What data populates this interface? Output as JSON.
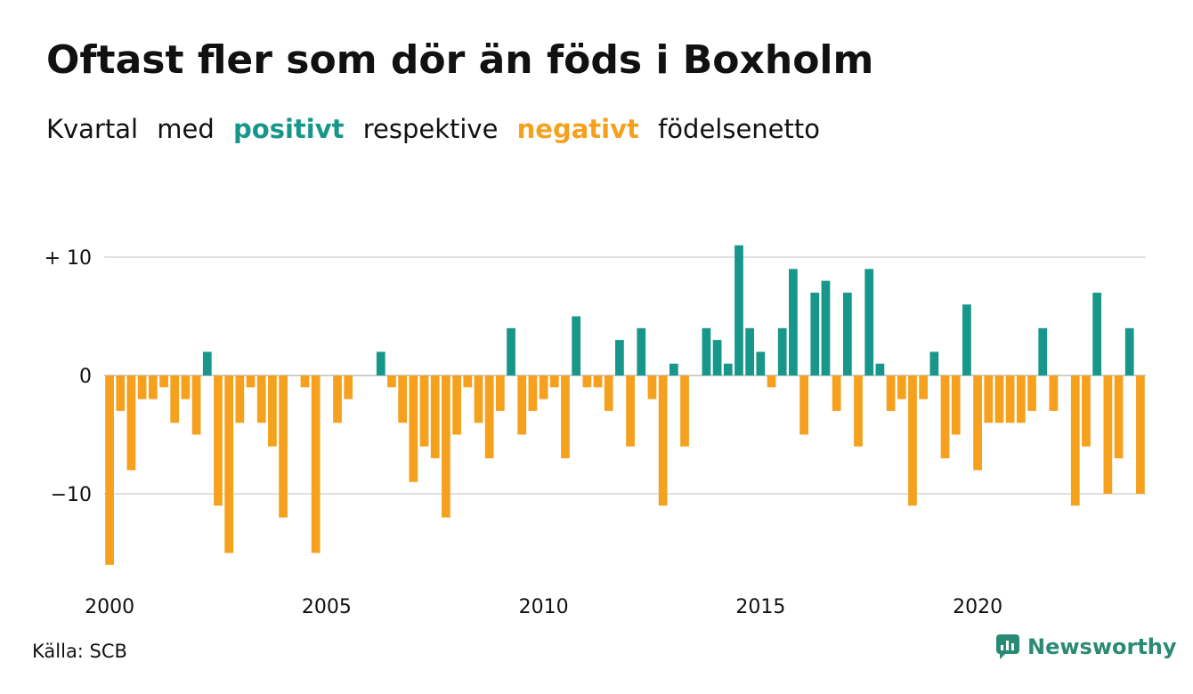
{
  "title": "Oftast fler som dör än föds i Boxholm",
  "subtitle": {
    "part1": "Kvartal",
    "part2": "med",
    "positive_word": "positivt",
    "part3": "respektive",
    "negative_word": "negativt",
    "part4": "födelsenetto"
  },
  "source": "Källa: SCB",
  "brand": "Newsworthy",
  "colors": {
    "positive": "#17978a",
    "negative": "#f5a11e",
    "grid": "#e0e0e0",
    "brand": "#2b8a74"
  },
  "chart_data": {
    "type": "bar",
    "start_year": 2000,
    "quarters_per_year": 4,
    "ylim": [
      -17,
      11
    ],
    "y_ticks": [
      {
        "value": 10,
        "label": "+ 10"
      },
      {
        "value": 0,
        "label": "0"
      },
      {
        "value": -10,
        "label": "−10"
      }
    ],
    "x_ticks": [
      "2000",
      "2005",
      "2010",
      "2015",
      "2020"
    ],
    "values": [
      -16,
      -3,
      -8,
      -2,
      -2,
      -1,
      -4,
      -2,
      -5,
      2,
      -11,
      -15,
      -4,
      -1,
      -4,
      -6,
      -12,
      0,
      -1,
      -15,
      0,
      -4,
      -2,
      0,
      0,
      2,
      -1,
      -4,
      -9,
      -6,
      -7,
      -12,
      -5,
      -1,
      -4,
      -7,
      -3,
      4,
      -5,
      -3,
      -2,
      -1,
      -7,
      5,
      -1,
      -1,
      -3,
      3,
      -6,
      4,
      -2,
      -11,
      1,
      -6,
      0,
      4,
      3,
      1,
      11,
      4,
      2,
      -1,
      4,
      9,
      -5,
      7,
      8,
      -3,
      7,
      -6,
      9,
      1,
      -3,
      -2,
      -11,
      -2,
      2,
      -7,
      -5,
      6,
      -8,
      -4,
      -4,
      -4,
      -4,
      -3,
      4,
      -3,
      0,
      -11,
      -6,
      7,
      -10,
      -7,
      4,
      -10
    ]
  }
}
